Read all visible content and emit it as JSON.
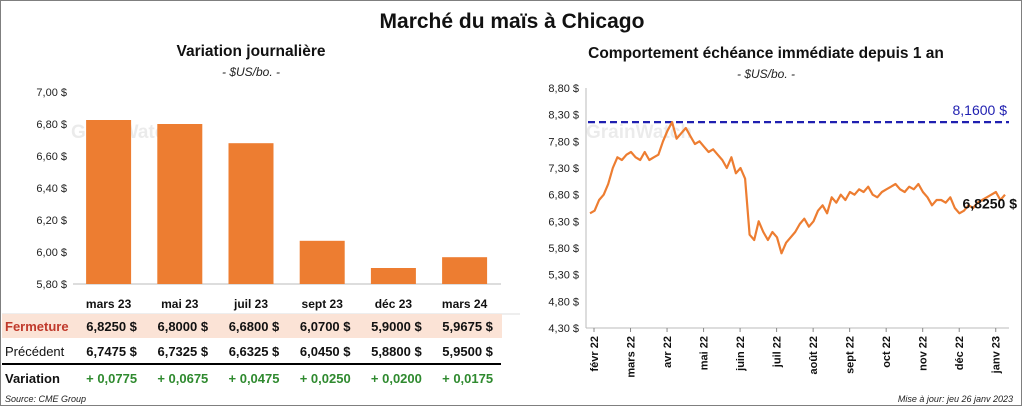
{
  "title": "Marché du maïs à Chicago",
  "left": {
    "title": "Variation  journalière",
    "unit": "- $US/bo. -"
  },
  "right": {
    "title": "Comportement  échéance  immédiate  depuis  1  an",
    "unit": "- $US/bo. -"
  },
  "watermark": "GrainWatch",
  "table": {
    "fermeture_label": "Fermeture",
    "precedent_label": "Précédent",
    "variation_label": "Variation",
    "fermeture": [
      "6,8250  $",
      "6,8000  $",
      "6,6800  $",
      "6,0700  $",
      "5,9000  $",
      "5,9675  $"
    ],
    "precedent": [
      "6,7475  $",
      "6,7325  $",
      "6,6325  $",
      "6,0450  $",
      "5,8800  $",
      "5,9500  $"
    ],
    "variation": [
      "+ 0,0775",
      "+ 0,0675",
      "+ 0,0475",
      "+ 0,0250",
      "+ 0,0200",
      "+ 0,0175"
    ]
  },
  "footer": {
    "source": "Source: CME Group",
    "update": "Mise à jour: jeu 26 janv 2023"
  },
  "colors": {
    "bar": "#ed7d31",
    "line": "#ed7d31",
    "max_line": "#1f1fb0",
    "table_highlight": "#fbe3d6",
    "variation_green": "#2f8a2f",
    "fermeture_red": "#c0392b"
  },
  "chart_data": [
    {
      "type": "bar",
      "title": "Variation journalière",
      "ylabel": "- $US/bo. -",
      "categories": [
        "mars 23",
        "mai 23",
        "juil 23",
        "sept 23",
        "déc 23",
        "mars 24"
      ],
      "values": [
        6.825,
        6.8,
        6.68,
        6.07,
        5.9,
        5.9675
      ],
      "ylim": [
        5.8,
        7.0
      ],
      "yticks": [
        "7,00 $",
        "6,80 $",
        "6,60 $",
        "6,40 $",
        "6,20 $",
        "6,00 $",
        "5,80 $"
      ],
      "grid": false
    },
    {
      "type": "line",
      "title": "Comportement échéance immédiate depuis 1 an",
      "ylabel": "- $US/bo. -",
      "ylim": [
        4.3,
        8.8
      ],
      "yticks": [
        "8,80 $",
        "8,30 $",
        "7,80 $",
        "7,30 $",
        "6,80 $",
        "6,30 $",
        "5,80 $",
        "5,30 $",
        "4,80 $",
        "4,30 $"
      ],
      "x_ticks": [
        "févr 22",
        "mars 22",
        "avr 22",
        "mai 22",
        "juin 22",
        "juil 22",
        "août 22",
        "sept 22",
        "oct 22",
        "nov 22",
        "déc 22",
        "janv 23"
      ],
      "series": [
        {
          "values": [
            6.45,
            6.5,
            6.7,
            6.8,
            7.0,
            7.3,
            7.5,
            7.45,
            7.55,
            7.6,
            7.5,
            7.45,
            7.6,
            7.45,
            7.5,
            7.55,
            7.8,
            8.0,
            8.16,
            7.85,
            7.95,
            8.05,
            7.9,
            7.75,
            7.8,
            7.7,
            7.6,
            7.65,
            7.55,
            7.45,
            7.3,
            7.5,
            7.2,
            7.3,
            7.1,
            6.05,
            5.95,
            6.3,
            6.1,
            5.95,
            6.1,
            6.0,
            5.7,
            5.9,
            6.0,
            6.1,
            6.25,
            6.35,
            6.2,
            6.3,
            6.5,
            6.6,
            6.45,
            6.75,
            6.65,
            6.8,
            6.7,
            6.85,
            6.8,
            6.9,
            6.85,
            6.95,
            6.8,
            6.75,
            6.85,
            6.9,
            6.95,
            7.0,
            6.9,
            6.85,
            6.95,
            6.9,
            7.0,
            6.85,
            6.75,
            6.6,
            6.7,
            6.7,
            6.65,
            6.75,
            6.55,
            6.45,
            6.5,
            6.6,
            6.55,
            6.65,
            6.7,
            6.75,
            6.8,
            6.85,
            6.7,
            6.8
          ]
        }
      ],
      "max_line_value": 8.16,
      "max_label": "8,1600 $",
      "last_label": "6,8250 $",
      "grid": false
    }
  ]
}
